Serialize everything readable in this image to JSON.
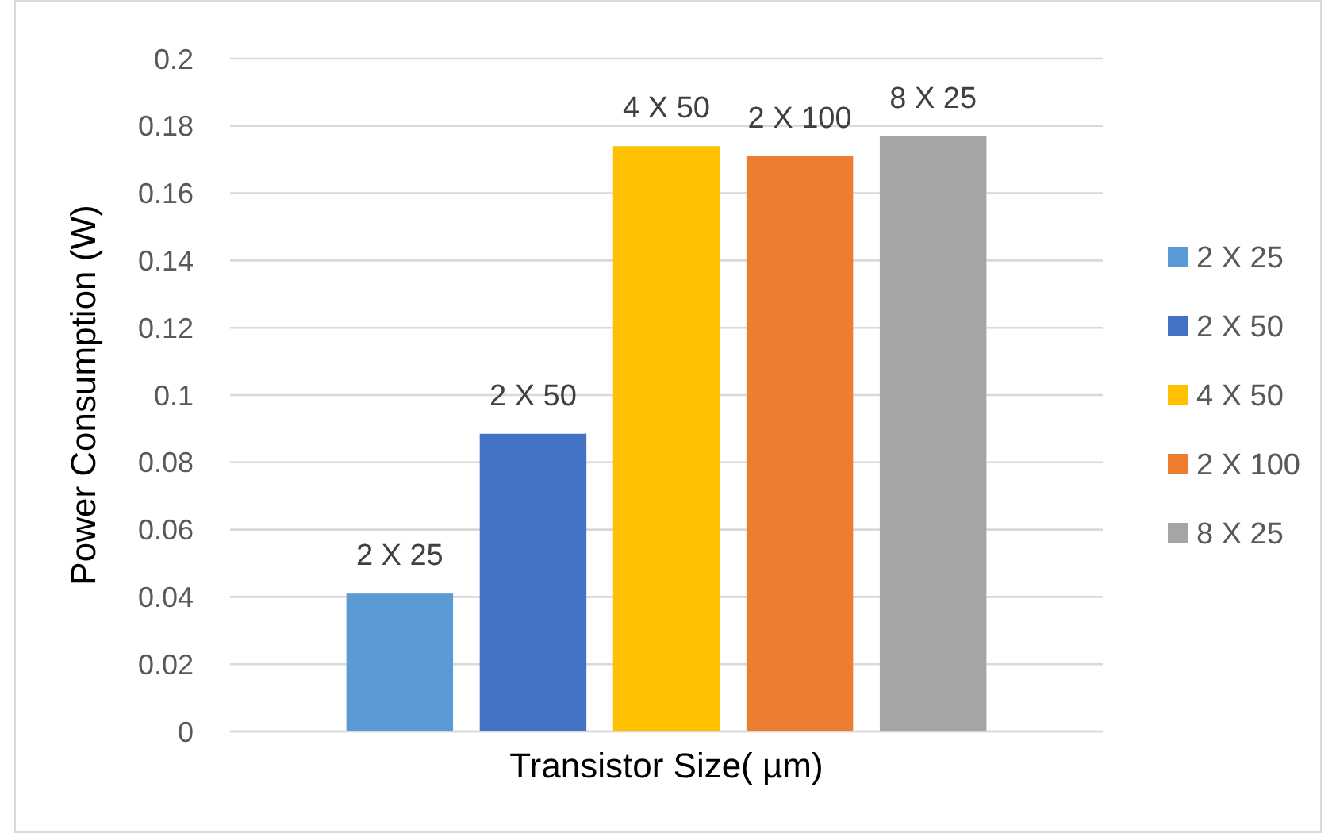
{
  "chart_data": {
    "type": "bar",
    "xlabel": "Transistor Size( µm)",
    "ylabel": "Power Consumption (W)",
    "categories": [
      null
    ],
    "series": [
      {
        "name": "2 X 25",
        "color": "#5b9bd5",
        "values": [
          0.041
        ]
      },
      {
        "name": "2 X 50",
        "color": "#4472c4",
        "values": [
          0.0885
        ]
      },
      {
        "name": "4 X 50",
        "color": "#ffc000",
        "values": [
          0.174
        ]
      },
      {
        "name": "2 X 100",
        "color": "#ed7d31",
        "values": [
          0.171
        ]
      },
      {
        "name": "8 X 25",
        "color": "#a5a5a5",
        "values": [
          0.177
        ]
      }
    ],
    "ylim": [
      0,
      0.2
    ],
    "yticks": [
      0,
      0.02,
      0.04,
      0.06,
      0.08,
      0.1,
      0.12,
      0.14,
      0.16,
      0.18,
      0.2
    ],
    "grid": "y",
    "legend": "right"
  }
}
